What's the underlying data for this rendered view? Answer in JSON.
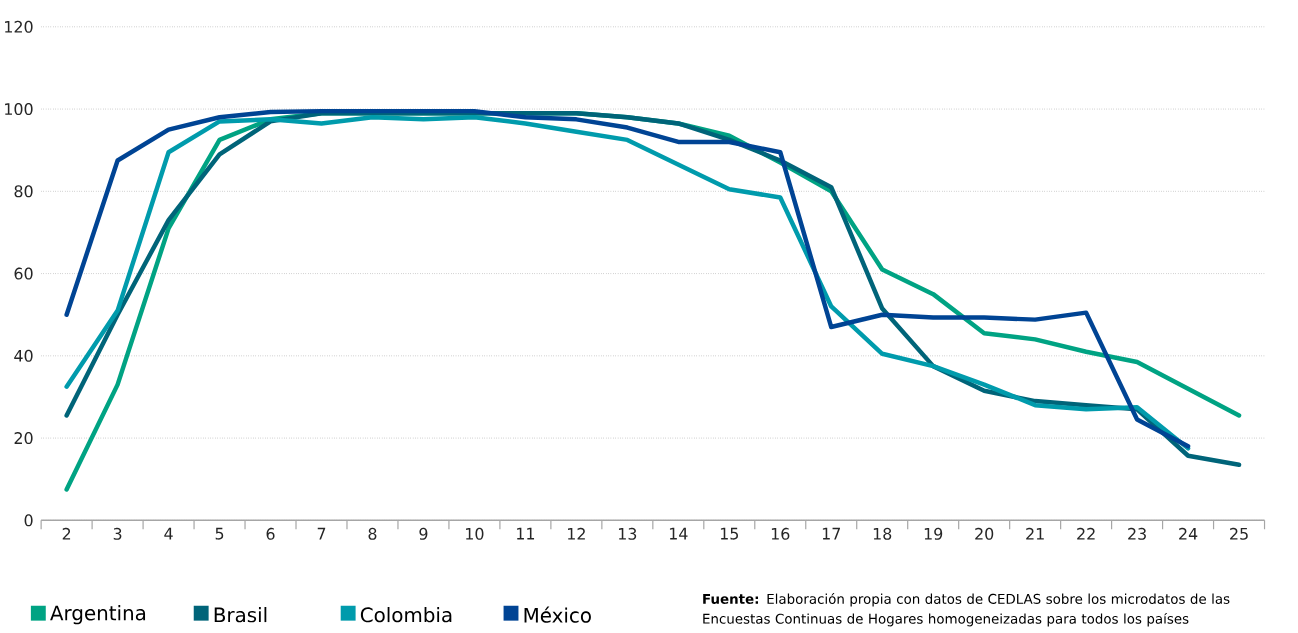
{
  "chart_data": {
    "type": "line",
    "categories": [
      "2",
      "3",
      "4",
      "5",
      "6",
      "7",
      "8",
      "9",
      "10",
      "11",
      "12",
      "13",
      "14",
      "15",
      "16",
      "17",
      "18",
      "19",
      "20",
      "21",
      "22",
      "23",
      "24",
      "25"
    ],
    "series": [
      {
        "name": "Argentina",
        "color": "#00a383",
        "values": [
          7.5,
          33,
          71,
          92.5,
          97.5,
          99,
          99,
          99,
          99,
          99,
          99,
          98,
          96.5,
          93.5,
          87,
          80,
          61,
          55,
          45.5,
          44,
          41,
          38.5,
          32,
          25.5
        ]
      },
      {
        "name": "Brasil",
        "color": "#006479",
        "values": [
          25.5,
          50,
          73,
          89,
          97,
          99,
          99,
          99,
          99,
          99,
          99,
          98,
          96.5,
          92.5,
          87.5,
          81,
          51.5,
          37.5,
          31.5,
          29,
          28,
          27,
          15.7,
          13.5
        ]
      },
      {
        "name": "Colombia",
        "color": "#009bac",
        "values": [
          32.5,
          51,
          89.5,
          97,
          97.5,
          96.5,
          98,
          97.5,
          98,
          96.5,
          94.5,
          92.5,
          86.5,
          80.5,
          78.5,
          52,
          40.5,
          37.5,
          33,
          28,
          27,
          27.5,
          17.5,
          null
        ]
      },
      {
        "name": "México",
        "color": "#004494",
        "values": [
          50,
          87.5,
          95,
          98,
          99.3,
          99.5,
          99.5,
          99.5,
          99.5,
          98,
          97.5,
          95.5,
          92,
          92,
          89.5,
          47,
          50,
          49.3,
          49.3,
          48.8,
          50.5,
          24.5,
          18,
          null
        ]
      }
    ],
    "ylim": [
      0,
      120
    ],
    "yticks": [
      0,
      20,
      40,
      60,
      80,
      100,
      120
    ],
    "grid": "y",
    "legend": "bottom",
    "marker": "none",
    "line_style": "solid",
    "annotations": [
      "**Fuente:** Elaboración propia con datos de CEDLAS sobre los microdatos de las Encuestas Continuas de Hogares homogeneizadas para todos los países"
    ]
  }
}
